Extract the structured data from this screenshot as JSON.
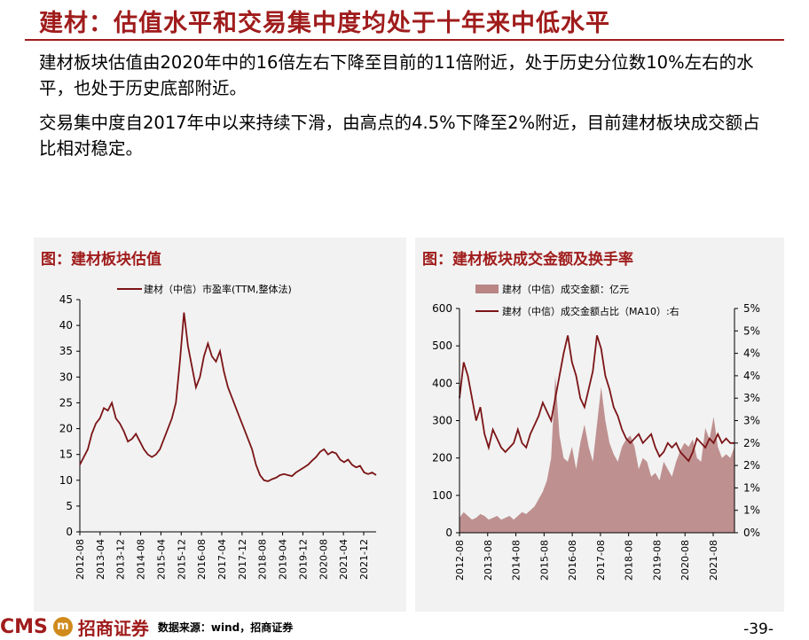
{
  "slide": {
    "title": "建材：估值水平和交易集中度均处于十年来中低水平",
    "paragraph1": "建材板块估值由2020年中的16倍左右下降至目前的11倍附近，处于历史分位数10%左右的水平，也处于历史底部附近。",
    "paragraph2": "交易集中度自2017年中以来持续下滑，由高点的4.5%下降至2%附近，目前建材板块成交额占比相对稳定。",
    "footer_logo_text": "CMS",
    "footer_brand": "招商证券",
    "footer_source": "数据来源：wind，招商证券",
    "page_number": "-39-",
    "accent_color": "#a01c1c"
  },
  "chart_data": [
    {
      "type": "line",
      "panel_title": "图：建材板块估值",
      "series": [
        {
          "name": "建材（中信）市盈率(TTM,整体法)",
          "color": "#7b1416",
          "values": [
            13,
            14.5,
            16,
            19,
            21,
            22,
            24,
            23.5,
            25,
            22,
            21,
            19.5,
            17.5,
            18,
            19,
            17.5,
            16,
            15,
            14.5,
            15,
            16,
            18,
            20,
            22,
            25,
            33,
            42.5,
            36,
            32,
            28,
            30,
            34,
            36.5,
            34,
            33,
            35,
            31,
            28,
            26,
            24,
            22,
            20,
            18,
            16,
            13,
            11,
            10,
            9.8,
            10.2,
            10.5,
            11,
            11.2,
            11,
            10.8,
            11.5,
            12,
            12.5,
            13,
            13.8,
            14.5,
            15.5,
            16,
            15,
            15.5,
            15.2,
            14,
            13.5,
            14,
            13,
            12.5,
            12.8,
            11.5,
            11.2,
            11.5,
            11
          ]
        }
      ],
      "x_range": [
        "2012-08",
        "2022-04"
      ],
      "x_ticks": [
        "2012-08",
        "2013-04",
        "2013-12",
        "2014-08",
        "2015-04",
        "2015-12",
        "2016-08",
        "2017-04",
        "2017-12",
        "2018-08",
        "2019-04",
        "2019-12",
        "2020-08",
        "2021-04",
        "2021-12"
      ],
      "y_ticks": [
        "0",
        "5",
        "10",
        "15",
        "20",
        "25",
        "30",
        "35",
        "40",
        "45"
      ],
      "ylim": [
        0,
        45
      ],
      "grid": false,
      "legend": "top"
    },
    {
      "type": "bar+line",
      "panel_title": "图：建材板块成交金额及换手率",
      "series": [
        {
          "name": "建材（中信）成交金额：亿元",
          "kind": "area",
          "color": "#b98585",
          "values": [
            40,
            55,
            45,
            35,
            40,
            50,
            45,
            35,
            40,
            45,
            35,
            40,
            45,
            35,
            45,
            55,
            50,
            60,
            70,
            90,
            110,
            140,
            200,
            420,
            260,
            200,
            190,
            230,
            170,
            240,
            290,
            230,
            190,
            290,
            390,
            300,
            240,
            210,
            190,
            230,
            250,
            260,
            230,
            170,
            200,
            190,
            150,
            160,
            140,
            190,
            170,
            150,
            190,
            220,
            240,
            230,
            250,
            200,
            190,
            280,
            250,
            310,
            230,
            200,
            210,
            200,
            230
          ]
        },
        {
          "name": "建材（中信）成交金额占比（MA10）:右",
          "kind": "line",
          "color": "#7b1416",
          "values": [
            3,
            3.8,
            3.5,
            3.0,
            2.5,
            2.8,
            2.2,
            1.9,
            2.3,
            2.1,
            1.9,
            1.8,
            1.9,
            2.0,
            2.3,
            2.0,
            1.9,
            2.2,
            2.4,
            2.6,
            2.9,
            2.7,
            2.5,
            3.0,
            3.5,
            4.0,
            4.4,
            3.8,
            3.5,
            3.0,
            2.8,
            3.2,
            3.6,
            4.4,
            4.1,
            3.5,
            3.2,
            2.8,
            2.6,
            2.3,
            2.1,
            2.0,
            2.1,
            2.2,
            2.0,
            2.1,
            2.2,
            1.9,
            1.7,
            1.8,
            2.0,
            1.9,
            2.0,
            1.8,
            1.7,
            1.6,
            1.8,
            2.1,
            2.0,
            1.9,
            2.1,
            2.0,
            2.2,
            2.0,
            2.1,
            2.0,
            2.0
          ]
        }
      ],
      "x_range": [
        "2012-08",
        "2022-04"
      ],
      "x_ticks": [
        "2012-08",
        "2013-08",
        "2014-08",
        "2015-08",
        "2016-08",
        "2017-08",
        "2018-08",
        "2019-08",
        "2020-08",
        "2021-08"
      ],
      "y_left_ticks": [
        "0",
        "100",
        "200",
        "300",
        "400",
        "500",
        "600"
      ],
      "y_right_ticks": [
        "0%",
        "1%",
        "1%",
        "2%",
        "2%",
        "3%",
        "3%",
        "4%",
        "4%",
        "5%",
        "5%"
      ],
      "ylim_left": [
        0,
        600
      ],
      "ylim_right": [
        0,
        5
      ],
      "grid": false,
      "legend": "top"
    }
  ]
}
